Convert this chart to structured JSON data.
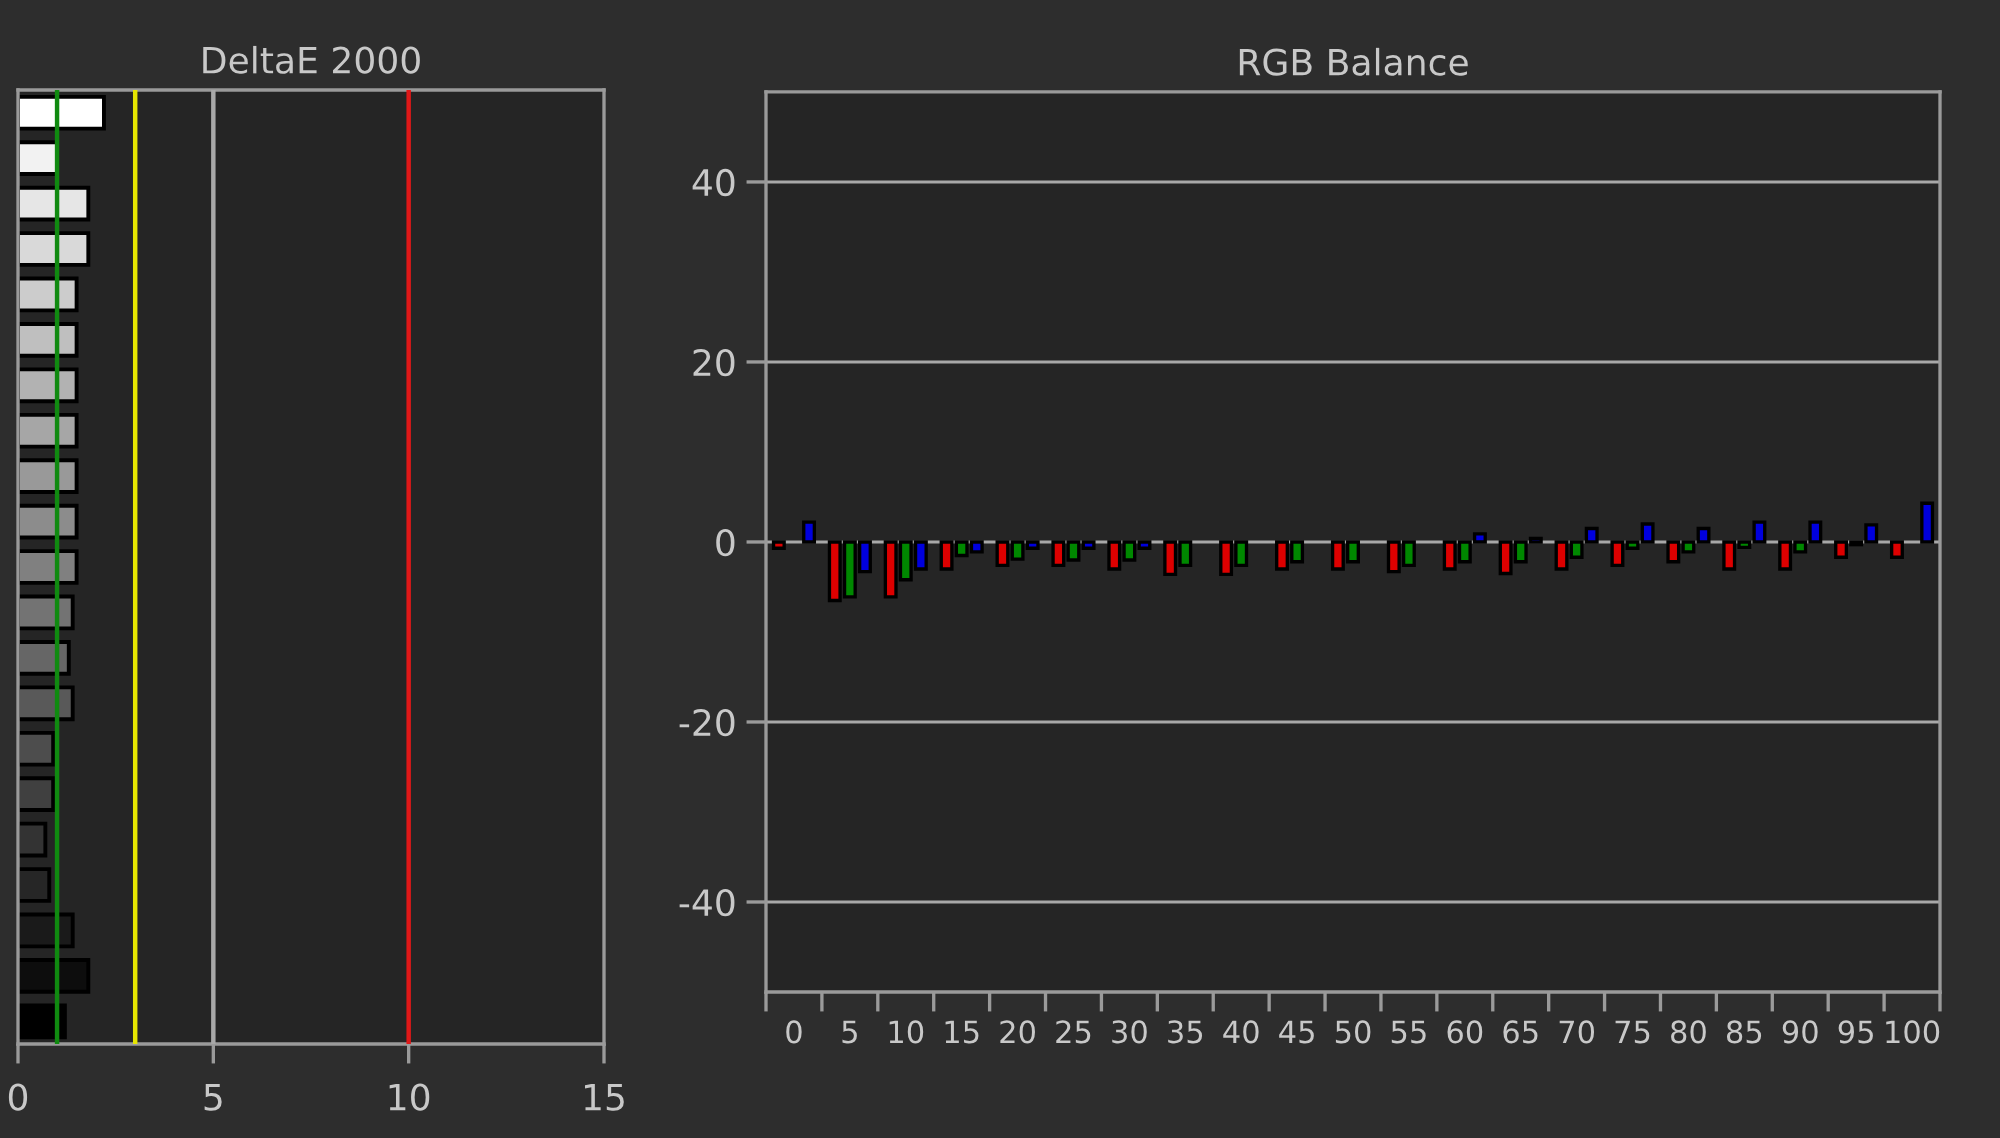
{
  "chart_data": [
    {
      "type": "bar",
      "title": "DeltaE 2000",
      "orientation": "horizontal",
      "categories": [
        null,
        null,
        null,
        null,
        null,
        null,
        null,
        null,
        null,
        null,
        null,
        null,
        null,
        null,
        null,
        null,
        null,
        null,
        null,
        null,
        null
      ],
      "values": [
        2.2,
        1.0,
        1.8,
        1.8,
        1.5,
        1.5,
        1.5,
        1.5,
        1.5,
        1.5,
        1.5,
        1.4,
        1.3,
        1.4,
        0.9,
        0.9,
        0.7,
        0.8,
        1.4,
        1.8,
        1.2
      ],
      "colors": [
        "#ffffff",
        "#f2f2f2",
        "#e6e6e6",
        "#d9d9d9",
        "#cccccc",
        "#bfbfbf",
        "#b2b2b2",
        "#a6a6a6",
        "#999999",
        "#8c8c8c",
        "#808080",
        "#737373",
        "#666666",
        "#595959",
        "#4d4d4d",
        "#404040",
        "#333333",
        "#262626",
        "#1a1a1a",
        "#0d0d0d",
        "#000000"
      ],
      "xlim": [
        0,
        15
      ],
      "xticks": [
        0,
        5,
        10,
        15
      ],
      "ref_lines": [
        {
          "axis": "x",
          "value": 1,
          "color": "#108a10"
        },
        {
          "axis": "x",
          "value": 3,
          "color": "#e6e600"
        },
        {
          "axis": "x",
          "value": 5,
          "color": "#a8a8a8"
        },
        {
          "axis": "x",
          "value": 10,
          "color": "#e01818"
        }
      ]
    },
    {
      "type": "bar",
      "title": "RGB Balance",
      "x": [
        0,
        5,
        10,
        15,
        20,
        25,
        30,
        35,
        40,
        45,
        50,
        55,
        60,
        65,
        70,
        75,
        80,
        85,
        90,
        95,
        100
      ],
      "series": [
        {
          "color": "#dd0000",
          "values": [
            -0.7,
            -6.5,
            -6.1,
            -3.0,
            -2.6,
            -2.6,
            -3.0,
            -3.6,
            -3.6,
            -3.0,
            -3.0,
            -3.3,
            -3.0,
            -3.5,
            -3.0,
            -2.6,
            -2.2,
            -3.0,
            -3.0,
            -1.7,
            -1.7
          ]
        },
        {
          "color": "#008800",
          "values": [
            0,
            -6.1,
            -4.2,
            -1.5,
            -1.9,
            -2.0,
            -2.0,
            -2.6,
            -2.6,
            -2.2,
            -2.2,
            -2.6,
            -2.2,
            -2.2,
            -1.7,
            -0.7,
            -1.1,
            -0.6,
            -1.1,
            -0.3,
            0
          ]
        },
        {
          "color": "#0000dd",
          "values": [
            2.2,
            -3.3,
            -3.0,
            -1.1,
            -0.7,
            -0.7,
            -0.7,
            0,
            0,
            0,
            0,
            0,
            0.9,
            0.4,
            1.5,
            2.0,
            1.5,
            2.2,
            2.2,
            1.9,
            4.3
          ]
        }
      ],
      "xlim": [
        -2.5,
        102.5
      ],
      "xticks": [
        {
          "value": -2.5,
          "label": null
        },
        0,
        {
          "value": 2.5,
          "label": null
        },
        5,
        {
          "value": 7.5,
          "label": null
        },
        10,
        {
          "value": 12.5,
          "label": null
        },
        15,
        {
          "value": 17.5,
          "label": null
        },
        20,
        {
          "value": 22.5,
          "label": null
        },
        25,
        {
          "value": 27.5,
          "label": null
        },
        30,
        {
          "value": 32.5,
          "label": null
        },
        35,
        {
          "value": 37.5,
          "label": null
        },
        40,
        {
          "value": 42.5,
          "label": null
        },
        45,
        {
          "value": 47.5,
          "label": null
        },
        50,
        {
          "value": 52.5,
          "label": null
        },
        55,
        {
          "value": 57.5,
          "label": null
        },
        60,
        {
          "value": 62.5,
          "label": null
        },
        65,
        {
          "value": 67.5,
          "label": null
        },
        70,
        {
          "value": 72.5,
          "label": null
        },
        75,
        {
          "value": 77.5,
          "label": null
        },
        80,
        {
          "value": 82.5,
          "label": null
        },
        85,
        {
          "value": 87.5,
          "label": null
        },
        90,
        {
          "value": 92.5,
          "label": null
        },
        95,
        {
          "value": 97.5,
          "label": null
        },
        100,
        {
          "value": 102.5,
          "label": null
        }
      ],
      "ylim": [
        -50,
        50
      ],
      "yticks": [
        -40,
        -20,
        0,
        20,
        40
      ],
      "grid": "y"
    }
  ]
}
